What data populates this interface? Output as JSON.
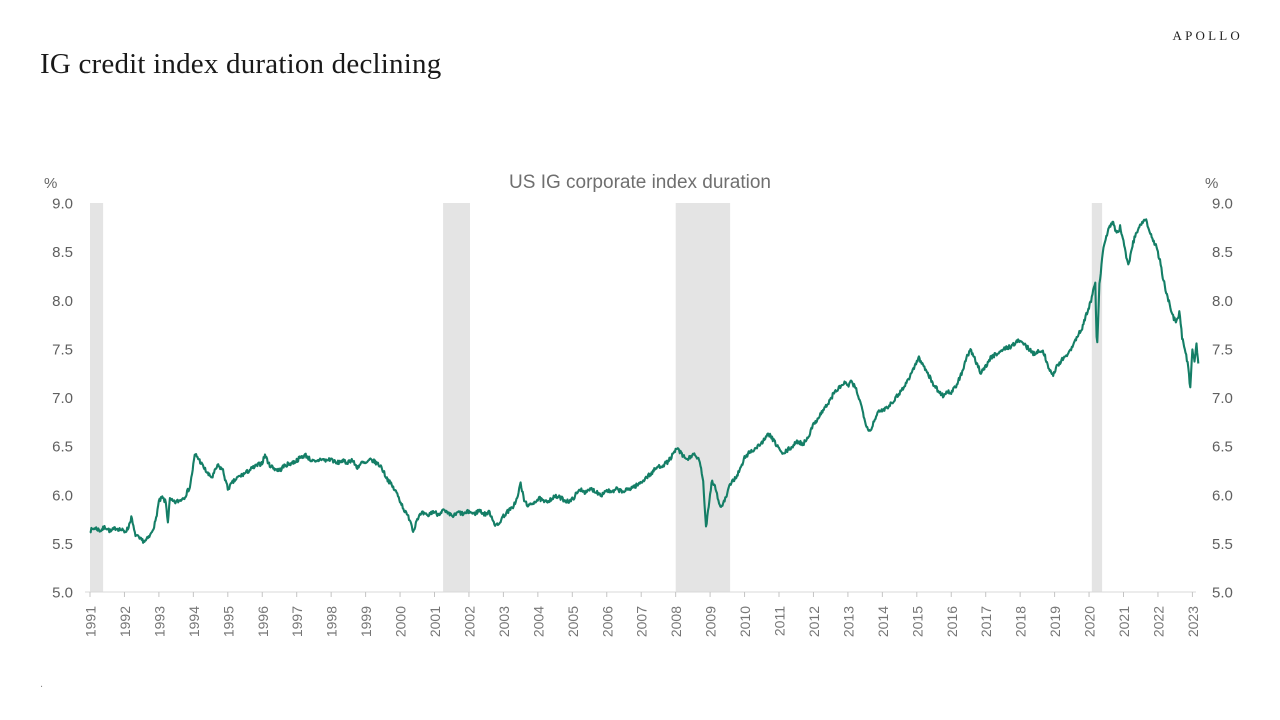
{
  "page": {
    "title": "IG credit index duration declining",
    "brand": "APOLLO",
    "footnote": "."
  },
  "chart_data": {
    "type": "line",
    "title": "US IG corporate index duration",
    "unit_label": "%",
    "line_color": "#147e66",
    "band_color": "#e4e4e4",
    "grid": false,
    "legend": "none",
    "y_axis": {
      "min": 5.0,
      "max": 9.0,
      "ticks": [
        "9.0",
        "8.5",
        "8.0",
        "7.5",
        "7.0",
        "6.5",
        "6.0",
        "5.5",
        "5.0"
      ]
    },
    "x_axis": {
      "years": [
        1991,
        1992,
        1993,
        1994,
        1995,
        1996,
        1997,
        1998,
        1999,
        2000,
        2001,
        2002,
        2003,
        2004,
        2005,
        2006,
        2007,
        2008,
        2009,
        2010,
        2011,
        2012,
        2013,
        2014,
        2015,
        2016,
        2017,
        2018,
        2019,
        2020,
        2021,
        2022,
        2023
      ]
    },
    "recession_bands": [
      {
        "start": 1991.0,
        "end": 1991.38
      },
      {
        "start": 2001.25,
        "end": 2002.03
      },
      {
        "start": 2008.0,
        "end": 2009.58
      },
      {
        "start": 2020.08,
        "end": 2020.38
      }
    ],
    "series": [
      {
        "name": "US IG corporate index duration",
        "points": [
          [
            1991.0,
            5.63
          ],
          [
            1991.15,
            5.66
          ],
          [
            1991.3,
            5.63
          ],
          [
            1991.45,
            5.67
          ],
          [
            1991.6,
            5.62
          ],
          [
            1991.75,
            5.66
          ],
          [
            1991.9,
            5.64
          ],
          [
            1992.0,
            5.62
          ],
          [
            1992.1,
            5.65
          ],
          [
            1992.2,
            5.77
          ],
          [
            1992.3,
            5.6
          ],
          [
            1992.45,
            5.54
          ],
          [
            1992.6,
            5.52
          ],
          [
            1992.75,
            5.58
          ],
          [
            1992.9,
            5.72
          ],
          [
            1993.0,
            5.93
          ],
          [
            1993.1,
            5.97
          ],
          [
            1993.2,
            5.92
          ],
          [
            1993.26,
            5.72
          ],
          [
            1993.32,
            5.95
          ],
          [
            1993.45,
            5.92
          ],
          [
            1993.6,
            5.94
          ],
          [
            1993.75,
            5.98
          ],
          [
            1993.9,
            6.08
          ],
          [
            1994.05,
            6.42
          ],
          [
            1994.15,
            6.37
          ],
          [
            1994.3,
            6.28
          ],
          [
            1994.45,
            6.2
          ],
          [
            1994.55,
            6.18
          ],
          [
            1994.7,
            6.3
          ],
          [
            1994.85,
            6.26
          ],
          [
            1995.0,
            6.06
          ],
          [
            1995.15,
            6.13
          ],
          [
            1995.3,
            6.18
          ],
          [
            1995.5,
            6.22
          ],
          [
            1995.7,
            6.27
          ],
          [
            1995.85,
            6.3
          ],
          [
            1996.0,
            6.33
          ],
          [
            1996.08,
            6.41
          ],
          [
            1996.2,
            6.31
          ],
          [
            1996.35,
            6.27
          ],
          [
            1996.5,
            6.25
          ],
          [
            1996.65,
            6.3
          ],
          [
            1996.8,
            6.32
          ],
          [
            1996.95,
            6.34
          ],
          [
            1997.1,
            6.38
          ],
          [
            1997.25,
            6.41
          ],
          [
            1997.4,
            6.36
          ],
          [
            1997.55,
            6.33
          ],
          [
            1997.7,
            6.37
          ],
          [
            1997.85,
            6.35
          ],
          [
            1998.0,
            6.37
          ],
          [
            1998.15,
            6.32
          ],
          [
            1998.3,
            6.35
          ],
          [
            1998.45,
            6.33
          ],
          [
            1998.6,
            6.36
          ],
          [
            1998.75,
            6.28
          ],
          [
            1998.9,
            6.33
          ],
          [
            1999.0,
            6.32
          ],
          [
            1999.15,
            6.36
          ],
          [
            1999.3,
            6.33
          ],
          [
            1999.45,
            6.29
          ],
          [
            1999.6,
            6.18
          ],
          [
            1999.75,
            6.1
          ],
          [
            1999.9,
            6.02
          ],
          [
            2000.0,
            5.94
          ],
          [
            2000.15,
            5.82
          ],
          [
            2000.3,
            5.74
          ],
          [
            2000.38,
            5.62
          ],
          [
            2000.5,
            5.76
          ],
          [
            2000.65,
            5.81
          ],
          [
            2000.8,
            5.78
          ],
          [
            2000.95,
            5.83
          ],
          [
            2001.1,
            5.8
          ],
          [
            2001.25,
            5.84
          ],
          [
            2001.4,
            5.8
          ],
          [
            2001.55,
            5.78
          ],
          [
            2001.7,
            5.82
          ],
          [
            2001.85,
            5.8
          ],
          [
            2002.0,
            5.83
          ],
          [
            2002.15,
            5.8
          ],
          [
            2002.3,
            5.84
          ],
          [
            2002.45,
            5.8
          ],
          [
            2002.6,
            5.82
          ],
          [
            2002.75,
            5.7
          ],
          [
            2002.85,
            5.68
          ],
          [
            2002.95,
            5.76
          ],
          [
            2003.1,
            5.82
          ],
          [
            2003.25,
            5.86
          ],
          [
            2003.4,
            5.96
          ],
          [
            2003.5,
            6.12
          ],
          [
            2003.6,
            5.94
          ],
          [
            2003.75,
            5.88
          ],
          [
            2003.9,
            5.93
          ],
          [
            2004.05,
            5.96
          ],
          [
            2004.2,
            5.92
          ],
          [
            2004.35,
            5.95
          ],
          [
            2004.5,
            5.98
          ],
          [
            2004.65,
            5.97
          ],
          [
            2004.8,
            5.94
          ],
          [
            2004.95,
            5.93
          ],
          [
            2005.1,
            6.0
          ],
          [
            2005.25,
            6.06
          ],
          [
            2005.4,
            6.02
          ],
          [
            2005.55,
            6.06
          ],
          [
            2005.7,
            6.03
          ],
          [
            2005.85,
            6.0
          ],
          [
            2006.0,
            6.05
          ],
          [
            2006.15,
            6.02
          ],
          [
            2006.3,
            6.06
          ],
          [
            2006.45,
            6.03
          ],
          [
            2006.6,
            6.05
          ],
          [
            2006.75,
            6.08
          ],
          [
            2006.9,
            6.1
          ],
          [
            2007.0,
            6.13
          ],
          [
            2007.15,
            6.18
          ],
          [
            2007.3,
            6.22
          ],
          [
            2007.45,
            6.28
          ],
          [
            2007.6,
            6.3
          ],
          [
            2007.75,
            6.33
          ],
          [
            2007.9,
            6.4
          ],
          [
            2008.05,
            6.48
          ],
          [
            2008.2,
            6.4
          ],
          [
            2008.35,
            6.36
          ],
          [
            2008.5,
            6.42
          ],
          [
            2008.6,
            6.38
          ],
          [
            2008.7,
            6.35
          ],
          [
            2008.8,
            6.12
          ],
          [
            2008.88,
            5.67
          ],
          [
            2008.95,
            5.86
          ],
          [
            2009.05,
            6.15
          ],
          [
            2009.15,
            6.08
          ],
          [
            2009.3,
            5.86
          ],
          [
            2009.45,
            5.96
          ],
          [
            2009.6,
            6.12
          ],
          [
            2009.75,
            6.18
          ],
          [
            2009.9,
            6.28
          ],
          [
            2010.0,
            6.38
          ],
          [
            2010.15,
            6.44
          ],
          [
            2010.3,
            6.47
          ],
          [
            2010.45,
            6.52
          ],
          [
            2010.6,
            6.57
          ],
          [
            2010.7,
            6.63
          ],
          [
            2010.85,
            6.55
          ],
          [
            2011.0,
            6.48
          ],
          [
            2011.1,
            6.41
          ],
          [
            2011.25,
            6.46
          ],
          [
            2011.4,
            6.5
          ],
          [
            2011.55,
            6.55
          ],
          [
            2011.7,
            6.52
          ],
          [
            2011.85,
            6.6
          ],
          [
            2012.0,
            6.72
          ],
          [
            2012.15,
            6.8
          ],
          [
            2012.3,
            6.88
          ],
          [
            2012.45,
            6.95
          ],
          [
            2012.6,
            7.05
          ],
          [
            2012.75,
            7.1
          ],
          [
            2012.9,
            7.15
          ],
          [
            2013.0,
            7.12
          ],
          [
            2013.1,
            7.16
          ],
          [
            2013.25,
            7.08
          ],
          [
            2013.4,
            6.9
          ],
          [
            2013.55,
            6.7
          ],
          [
            2013.65,
            6.65
          ],
          [
            2013.8,
            6.8
          ],
          [
            2013.9,
            6.85
          ],
          [
            2014.05,
            6.88
          ],
          [
            2014.2,
            6.92
          ],
          [
            2014.35,
            6.98
          ],
          [
            2014.5,
            7.05
          ],
          [
            2014.65,
            7.12
          ],
          [
            2014.8,
            7.22
          ],
          [
            2014.95,
            7.33
          ],
          [
            2015.05,
            7.41
          ],
          [
            2015.15,
            7.35
          ],
          [
            2015.3,
            7.27
          ],
          [
            2015.45,
            7.15
          ],
          [
            2015.6,
            7.08
          ],
          [
            2015.75,
            7.02
          ],
          [
            2015.9,
            7.06
          ],
          [
            2016.0,
            7.05
          ],
          [
            2016.15,
            7.12
          ],
          [
            2016.3,
            7.25
          ],
          [
            2016.45,
            7.41
          ],
          [
            2016.55,
            7.49
          ],
          [
            2016.7,
            7.38
          ],
          [
            2016.85,
            7.26
          ],
          [
            2017.0,
            7.32
          ],
          [
            2017.15,
            7.41
          ],
          [
            2017.3,
            7.45
          ],
          [
            2017.45,
            7.48
          ],
          [
            2017.6,
            7.51
          ],
          [
            2017.75,
            7.53
          ],
          [
            2017.9,
            7.57
          ],
          [
            2018.0,
            7.59
          ],
          [
            2018.1,
            7.55
          ],
          [
            2018.25,
            7.5
          ],
          [
            2018.4,
            7.45
          ],
          [
            2018.55,
            7.49
          ],
          [
            2018.7,
            7.45
          ],
          [
            2018.85,
            7.28
          ],
          [
            2018.95,
            7.22
          ],
          [
            2019.05,
            7.32
          ],
          [
            2019.2,
            7.38
          ],
          [
            2019.35,
            7.43
          ],
          [
            2019.5,
            7.52
          ],
          [
            2019.65,
            7.62
          ],
          [
            2019.8,
            7.72
          ],
          [
            2019.95,
            7.88
          ],
          [
            2020.05,
            7.98
          ],
          [
            2020.12,
            8.1
          ],
          [
            2020.18,
            8.18
          ],
          [
            2020.23,
            7.47
          ],
          [
            2020.3,
            8.15
          ],
          [
            2020.4,
            8.5
          ],
          [
            2020.5,
            8.66
          ],
          [
            2020.6,
            8.76
          ],
          [
            2020.7,
            8.8
          ],
          [
            2020.8,
            8.68
          ],
          [
            2020.9,
            8.75
          ],
          [
            2021.0,
            8.62
          ],
          [
            2021.08,
            8.45
          ],
          [
            2021.15,
            8.36
          ],
          [
            2021.25,
            8.55
          ],
          [
            2021.35,
            8.68
          ],
          [
            2021.45,
            8.75
          ],
          [
            2021.55,
            8.8
          ],
          [
            2021.65,
            8.82
          ],
          [
            2021.75,
            8.72
          ],
          [
            2021.85,
            8.62
          ],
          [
            2021.95,
            8.55
          ],
          [
            2022.05,
            8.42
          ],
          [
            2022.15,
            8.22
          ],
          [
            2022.25,
            8.07
          ],
          [
            2022.35,
            7.95
          ],
          [
            2022.45,
            7.82
          ],
          [
            2022.55,
            7.78
          ],
          [
            2022.62,
            7.88
          ],
          [
            2022.7,
            7.62
          ],
          [
            2022.8,
            7.48
          ],
          [
            2022.88,
            7.3
          ],
          [
            2022.94,
            7.1
          ],
          [
            2023.0,
            7.5
          ],
          [
            2023.06,
            7.38
          ],
          [
            2023.12,
            7.55
          ],
          [
            2023.17,
            7.35
          ]
        ]
      }
    ]
  }
}
